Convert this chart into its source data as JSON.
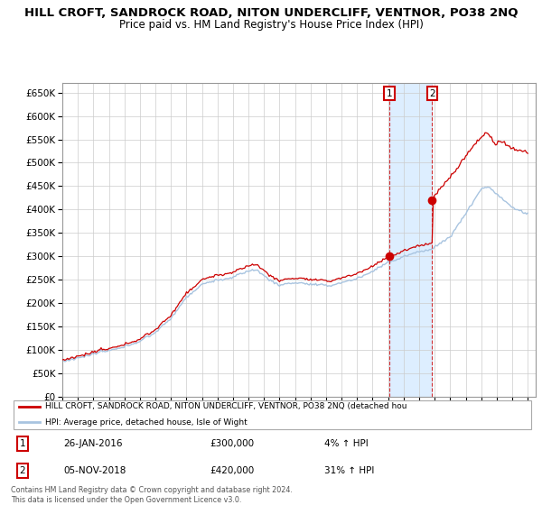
{
  "title": "HILL CROFT, SANDROCK ROAD, NITON UNDERCLIFF, VENTNOR, PO38 2NQ",
  "subtitle": "Price paid vs. HM Land Registry's House Price Index (HPI)",
  "legend_line1": "HILL CROFT, SANDROCK ROAD, NITON UNDERCLIFF, VENTNOR, PO38 2NQ (detached hou",
  "legend_line2": "HPI: Average price, detached house, Isle of Wight",
  "transaction1_date": "26-JAN-2016",
  "transaction1_price": "£300,000",
  "transaction1_hpi": "4% ↑ HPI",
  "transaction2_date": "05-NOV-2018",
  "transaction2_price": "£420,000",
  "transaction2_hpi": "31% ↑ HPI",
  "footer": "Contains HM Land Registry data © Crown copyright and database right 2024.\nThis data is licensed under the Open Government Licence v3.0.",
  "ylim": [
    0,
    670000
  ],
  "yticks": [
    0,
    50000,
    100000,
    150000,
    200000,
    250000,
    300000,
    350000,
    400000,
    450000,
    500000,
    550000,
    600000,
    650000
  ],
  "hpi_color": "#a8c4e0",
  "price_color": "#cc0000",
  "bg_color": "#ffffff",
  "shading_color": "#ddeeff",
  "transaction1_x": 2016.07,
  "transaction2_x": 2018.84,
  "t1_price": 300000,
  "t2_price": 420000
}
